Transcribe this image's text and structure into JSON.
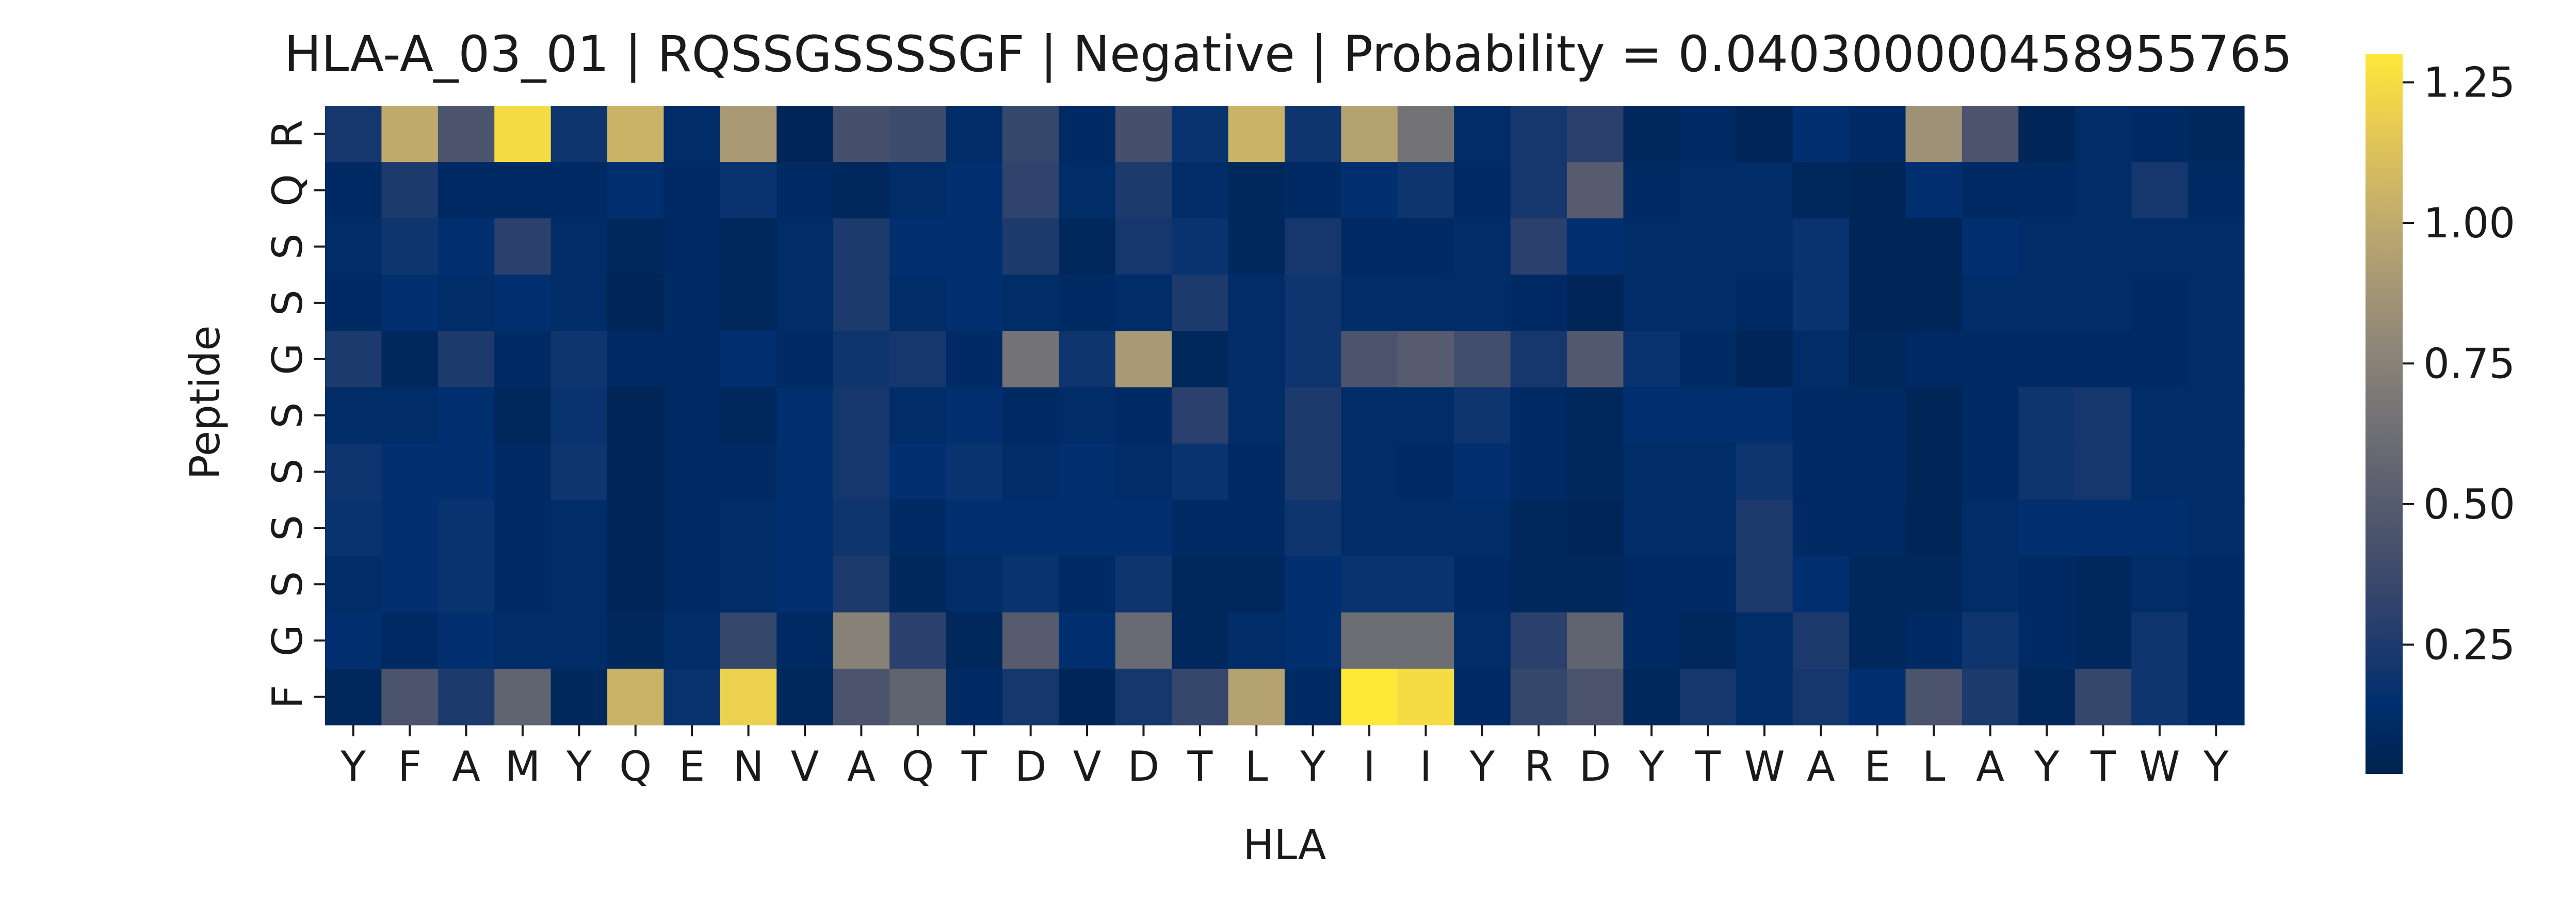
{
  "chart_data": {
    "type": "heatmap",
    "title": "HLA-A_03_01 | RQSSGSSSSGF | Negative | Probability = 0.040300000458955765",
    "xlabel": "HLA",
    "ylabel": "Peptide",
    "x_categories": [
      "Y",
      "F",
      "A",
      "M",
      "Y",
      "Q",
      "E",
      "N",
      "V",
      "A",
      "Q",
      "T",
      "D",
      "V",
      "D",
      "T",
      "L",
      "Y",
      "I",
      "I",
      "Y",
      "R",
      "D",
      "Y",
      "T",
      "W",
      "A",
      "E",
      "L",
      "A",
      "Y",
      "T",
      "W",
      "Y"
    ],
    "y_categories": [
      "R",
      "Q",
      "S",
      "S",
      "G",
      "S",
      "S",
      "S",
      "S",
      "G",
      "F"
    ],
    "colorscale": "cividis",
    "vmin": 0.02,
    "vmax": 1.3,
    "colorbar_ticks": [
      0.25,
      0.5,
      0.75,
      1.0,
      1.25
    ],
    "colorbar_tick_labels": [
      "0.25",
      "0.50",
      "0.75",
      "1.00",
      "1.25"
    ],
    "values": [
      [
        0.22,
        1.0,
        0.45,
        1.25,
        0.2,
        1.05,
        0.12,
        0.9,
        0.05,
        0.42,
        0.38,
        0.12,
        0.35,
        0.1,
        0.42,
        0.18,
        1.05,
        0.2,
        0.95,
        0.65,
        0.12,
        0.22,
        0.3,
        0.08,
        0.1,
        0.05,
        0.15,
        0.1,
        0.85,
        0.45,
        0.06,
        0.12,
        0.1,
        0.08
      ],
      [
        0.1,
        0.25,
        0.1,
        0.1,
        0.1,
        0.15,
        0.1,
        0.18,
        0.1,
        0.08,
        0.12,
        0.15,
        0.32,
        0.12,
        0.25,
        0.12,
        0.08,
        0.1,
        0.15,
        0.2,
        0.1,
        0.22,
        0.5,
        0.1,
        0.12,
        0.12,
        0.08,
        0.06,
        0.15,
        0.1,
        0.1,
        0.12,
        0.22,
        0.1
      ],
      [
        0.12,
        0.2,
        0.15,
        0.3,
        0.12,
        0.08,
        0.1,
        0.08,
        0.12,
        0.25,
        0.15,
        0.15,
        0.25,
        0.08,
        0.22,
        0.18,
        0.08,
        0.22,
        0.1,
        0.1,
        0.12,
        0.3,
        0.15,
        0.12,
        0.12,
        0.12,
        0.18,
        0.06,
        0.05,
        0.15,
        0.12,
        0.12,
        0.12,
        0.12
      ],
      [
        0.1,
        0.15,
        0.12,
        0.15,
        0.12,
        0.06,
        0.1,
        0.08,
        0.12,
        0.25,
        0.12,
        0.15,
        0.12,
        0.1,
        0.12,
        0.25,
        0.12,
        0.2,
        0.12,
        0.12,
        0.12,
        0.1,
        0.05,
        0.12,
        0.12,
        0.1,
        0.18,
        0.06,
        0.06,
        0.12,
        0.12,
        0.12,
        0.1,
        0.12
      ],
      [
        0.25,
        0.08,
        0.25,
        0.1,
        0.2,
        0.1,
        0.1,
        0.15,
        0.1,
        0.2,
        0.22,
        0.1,
        0.65,
        0.2,
        0.9,
        0.08,
        0.12,
        0.2,
        0.45,
        0.5,
        0.4,
        0.22,
        0.48,
        0.18,
        0.1,
        0.06,
        0.12,
        0.08,
        0.1,
        0.1,
        0.1,
        0.1,
        0.1,
        0.12
      ],
      [
        0.12,
        0.12,
        0.15,
        0.08,
        0.18,
        0.05,
        0.1,
        0.08,
        0.15,
        0.22,
        0.12,
        0.15,
        0.1,
        0.12,
        0.1,
        0.3,
        0.12,
        0.25,
        0.12,
        0.12,
        0.2,
        0.1,
        0.08,
        0.15,
        0.15,
        0.15,
        0.1,
        0.1,
        0.06,
        0.1,
        0.2,
        0.22,
        0.12,
        0.12
      ],
      [
        0.2,
        0.15,
        0.15,
        0.1,
        0.2,
        0.05,
        0.1,
        0.1,
        0.15,
        0.22,
        0.15,
        0.18,
        0.12,
        0.15,
        0.12,
        0.18,
        0.1,
        0.25,
        0.12,
        0.1,
        0.15,
        0.1,
        0.08,
        0.12,
        0.12,
        0.2,
        0.1,
        0.1,
        0.06,
        0.1,
        0.2,
        0.22,
        0.12,
        0.12
      ],
      [
        0.18,
        0.15,
        0.18,
        0.1,
        0.12,
        0.05,
        0.1,
        0.12,
        0.15,
        0.2,
        0.1,
        0.15,
        0.15,
        0.15,
        0.15,
        0.1,
        0.1,
        0.2,
        0.12,
        0.12,
        0.12,
        0.08,
        0.06,
        0.12,
        0.12,
        0.25,
        0.1,
        0.1,
        0.05,
        0.12,
        0.15,
        0.15,
        0.15,
        0.12
      ],
      [
        0.12,
        0.15,
        0.18,
        0.1,
        0.12,
        0.05,
        0.1,
        0.12,
        0.15,
        0.25,
        0.08,
        0.12,
        0.18,
        0.1,
        0.2,
        0.08,
        0.08,
        0.15,
        0.18,
        0.18,
        0.1,
        0.08,
        0.08,
        0.1,
        0.1,
        0.25,
        0.15,
        0.08,
        0.08,
        0.12,
        0.1,
        0.08,
        0.12,
        0.1
      ],
      [
        0.15,
        0.1,
        0.15,
        0.12,
        0.12,
        0.08,
        0.12,
        0.35,
        0.1,
        0.75,
        0.3,
        0.08,
        0.5,
        0.15,
        0.6,
        0.08,
        0.12,
        0.15,
        0.62,
        0.62,
        0.12,
        0.3,
        0.55,
        0.1,
        0.08,
        0.12,
        0.25,
        0.08,
        0.1,
        0.2,
        0.1,
        0.08,
        0.2,
        0.1
      ],
      [
        0.08,
        0.45,
        0.25,
        0.55,
        0.08,
        1.05,
        0.18,
        1.2,
        0.08,
        0.45,
        0.55,
        0.1,
        0.22,
        0.06,
        0.22,
        0.35,
        0.95,
        0.1,
        1.3,
        1.25,
        0.1,
        0.35,
        0.45,
        0.08,
        0.22,
        0.12,
        0.22,
        0.15,
        0.45,
        0.25,
        0.08,
        0.35,
        0.2,
        0.1
      ]
    ]
  }
}
